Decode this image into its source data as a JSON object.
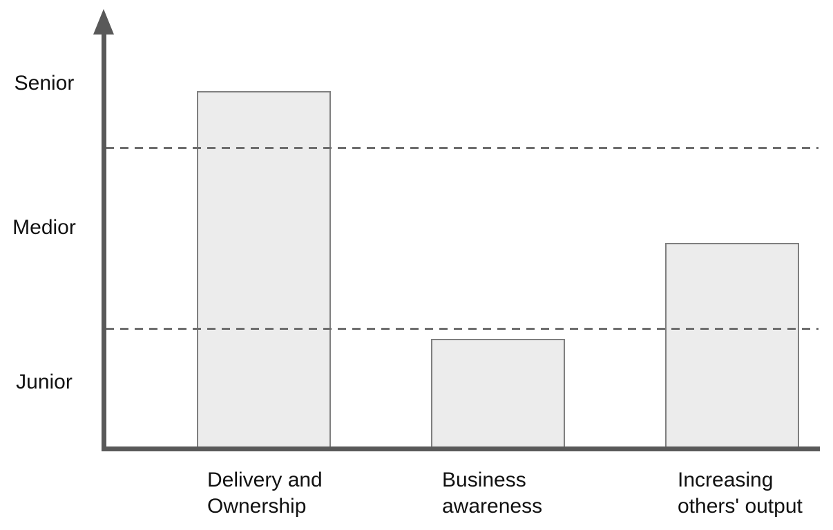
{
  "colors": {
    "axis": "#595959",
    "gridline_dash": "#6e6e6e",
    "bar_fill": "#ececec",
    "bar_border": "#7f7f7f",
    "text": "#111111",
    "background": "#ffffff"
  },
  "chart_data": {
    "type": "bar",
    "title": "",
    "xlabel": "",
    "ylabel": "",
    "categories": [
      "Delivery and Ownership",
      "Business awareness",
      "Increasing others' output"
    ],
    "categories_display": [
      [
        "Delivery and",
        "Ownership"
      ],
      [
        "Business",
        "awareness"
      ],
      [
        "Increasing",
        "others' output"
      ]
    ],
    "values": [
      2.3,
      0.95,
      1.45
    ],
    "value_units": "seniority level (0-3 scale; Junior band 0-1, Medior band 1-2, Senior band 2-3)",
    "y_tick_labels": [
      "Senior",
      "Medior",
      "Junior"
    ],
    "ylim": [
      0,
      3
    ],
    "gridlines_dashed_at": [
      2.0,
      1.0
    ],
    "gridline_style": "dashed",
    "legend_position": "none",
    "bar_fill": "#ececec",
    "bar_border": "#7f7f7f",
    "notes": "Y axis is an upward arrow with three qualitative level labels; two dashed horizontal lines divide the Junior/Medior and Medior/Senior bands and are drawn over the bars."
  }
}
